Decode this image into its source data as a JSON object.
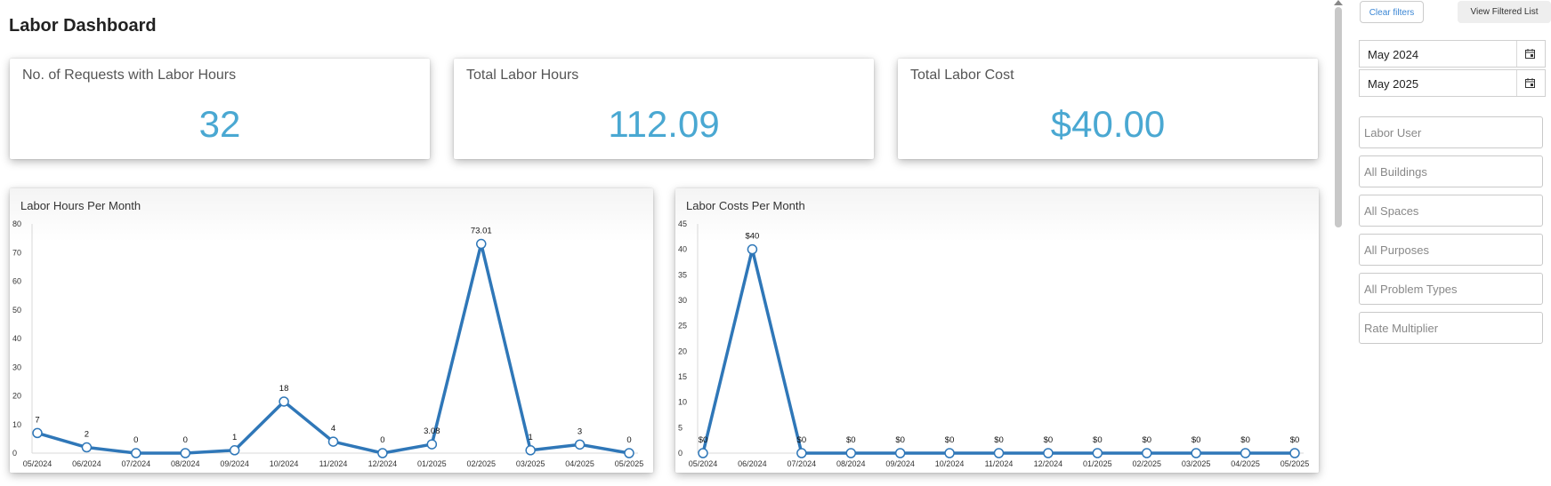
{
  "page": {
    "title": "Labor Dashboard"
  },
  "kpis": [
    {
      "label": "No. of Requests with Labor Hours",
      "value": "32"
    },
    {
      "label": "Total Labor Hours",
      "value": "112.09"
    },
    {
      "label": "Total Labor Cost",
      "value": "$40.00"
    }
  ],
  "sidebar": {
    "clear_filters": "Clear filters",
    "view_filtered_list": "View Filtered List",
    "start_date": "May 2024",
    "end_date": "May 2025",
    "filters": [
      "Labor User",
      "All Buildings",
      "All Spaces",
      "All Purposes",
      "All Problem Types",
      "Rate Multiplier"
    ]
  },
  "colors": {
    "accent": "#4aa8d2",
    "line": "#2f77b8",
    "link": "#3a86d4"
  },
  "chart_data": [
    {
      "type": "line",
      "title": "Labor Hours Per Month",
      "categories": [
        "05/2024",
        "06/2024",
        "07/2024",
        "08/2024",
        "09/2024",
        "10/2024",
        "11/2024",
        "12/2024",
        "01/2025",
        "02/2025",
        "03/2025",
        "04/2025",
        "05/2025"
      ],
      "values": [
        7,
        2,
        0,
        0,
        1,
        18,
        4,
        0,
        3.08,
        73.01,
        1,
        3,
        0
      ],
      "labels": [
        "7",
        "2",
        "0",
        "0",
        "1",
        "18",
        "4",
        "0",
        "3.08",
        "73.01",
        "1",
        "3",
        "0"
      ],
      "ylim": [
        0,
        80
      ],
      "yticks": [
        0,
        10,
        20,
        30,
        40,
        50,
        60,
        70,
        80
      ],
      "xlabel": "",
      "ylabel": "",
      "grid": false
    },
    {
      "type": "line",
      "title": "Labor Costs Per Month",
      "categories": [
        "05/2024",
        "06/2024",
        "07/2024",
        "08/2024",
        "09/2024",
        "10/2024",
        "11/2024",
        "12/2024",
        "01/2025",
        "02/2025",
        "03/2025",
        "04/2025",
        "05/2025"
      ],
      "values": [
        0,
        40,
        0,
        0,
        0,
        0,
        0,
        0,
        0,
        0,
        0,
        0,
        0
      ],
      "labels": [
        "$0",
        "$40",
        "$0",
        "$0",
        "$0",
        "$0",
        "$0",
        "$0",
        "$0",
        "$0",
        "$0",
        "$0",
        "$0"
      ],
      "ylim": [
        0,
        45
      ],
      "yticks": [
        0,
        5,
        10,
        15,
        20,
        25,
        30,
        35,
        40,
        45
      ],
      "xlabel": "",
      "ylabel": "",
      "grid": false
    }
  ]
}
